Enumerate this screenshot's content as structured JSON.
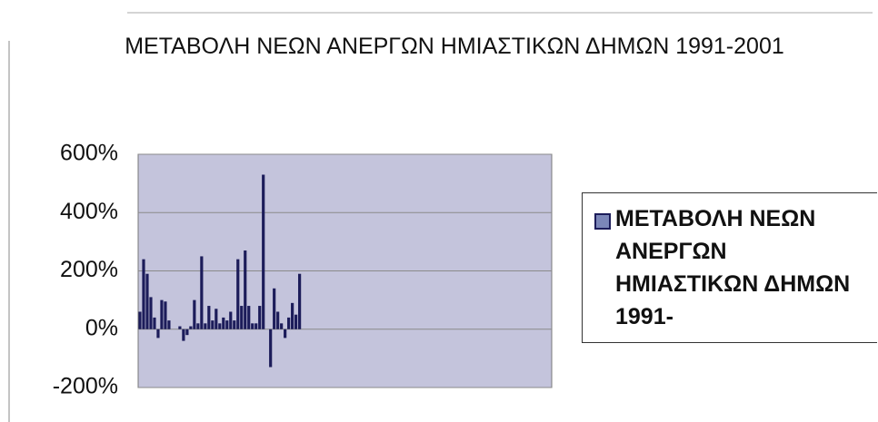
{
  "chart_data": {
    "type": "bar",
    "title": "ΜΕΤΑΒΟΛΗ ΝΕΩΝ ΑΝΕΡΓΩΝ ΗΜΙΑΣΤΙΚΩΝ ΔΗΜΩΝ 1991-2001",
    "categories": [
      null,
      null,
      null,
      null,
      null,
      null,
      null,
      null,
      null,
      null,
      null,
      null,
      null,
      null,
      null,
      null,
      null,
      null,
      null,
      null,
      null,
      null,
      null,
      null,
      null,
      null,
      null,
      null,
      null,
      null,
      null,
      null,
      null,
      null,
      null,
      null,
      null,
      null,
      null,
      null,
      null,
      null,
      null,
      null,
      null,
      null,
      null,
      null,
      null,
      null,
      null,
      null,
      null,
      null,
      null,
      null,
      null,
      null,
      null,
      null,
      null,
      null,
      null,
      null,
      null,
      null,
      null,
      null,
      null,
      null,
      null,
      null,
      null,
      null,
      null,
      null,
      null,
      null,
      null,
      null,
      null,
      null,
      null,
      null,
      null,
      null,
      null,
      null,
      null,
      null,
      null,
      null,
      null,
      null,
      null,
      null,
      null,
      null,
      null,
      null,
      null,
      null,
      null,
      null,
      null,
      null,
      null,
      null,
      null,
      null,
      null,
      null,
      null,
      null
    ],
    "series": [
      {
        "name": "ΜΕΤΑΒΟΛΗ ΝΕΩΝ ΑΝΕΡΓΩΝ ΗΜΙΑΣΤΙΚΩΝ ΔΗΜΩΝ 1991-",
        "color": "#1c1c5a",
        "values": [
          60,
          240,
          190,
          110,
          40,
          -30,
          100,
          95,
          30,
          0,
          0,
          10,
          -40,
          -20,
          10,
          100,
          20,
          250,
          20,
          80,
          30,
          70,
          20,
          40,
          30,
          60,
          30,
          240,
          80,
          270,
          80,
          20,
          20,
          80,
          530,
          0,
          -130,
          140,
          60,
          20,
          -30,
          40,
          90,
          50,
          190,
          null,
          null,
          null,
          null,
          null,
          null,
          null,
          null,
          null,
          null,
          null,
          null,
          null,
          null,
          null,
          null,
          null,
          null,
          null,
          null,
          null,
          null,
          null,
          null,
          null,
          null,
          null,
          null,
          null,
          null,
          null,
          null,
          null,
          null,
          null,
          null,
          null,
          null,
          null,
          null,
          null,
          null,
          null,
          null,
          null,
          null,
          null,
          null,
          null,
          null,
          null,
          null,
          null,
          null,
          null,
          null,
          null,
          null,
          null,
          null,
          null,
          null,
          null,
          null,
          null,
          null,
          null,
          null,
          null
        ]
      }
    ],
    "ylim": [
      -200,
      600
    ],
    "yticks": [
      {
        "value": -200,
        "label": "-200%"
      },
      {
        "value": 0,
        "label": "0%"
      },
      {
        "value": 200,
        "label": "200%"
      },
      {
        "value": 400,
        "label": "400%"
      },
      {
        "value": 600,
        "label": "600%"
      }
    ],
    "grid": true,
    "legend": "right"
  }
}
